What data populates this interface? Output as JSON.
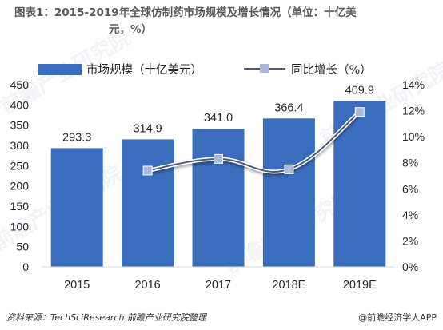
{
  "title": {
    "line1": "图表1：2015-2019年全球仿制药市场规模及增长情况（单位：十亿美",
    "line2": "元，%）"
  },
  "watermark": "前瞻产业研究院",
  "footer": {
    "source": "资料来源：TechSciResearch 前瞻产业研究院整理",
    "brand": "@前瞻经济学人APP"
  },
  "colors": {
    "bar": "#3A6DBE",
    "line": "#4A5A78",
    "marker": "#A9B9DE",
    "axis_text": "#262626"
  },
  "chart_data": {
    "type": "bar",
    "categories": [
      "2015",
      "2016",
      "2017",
      "2018E",
      "2019E"
    ],
    "series": [
      {
        "name": "市场规模（十亿美元）",
        "type": "bar",
        "axis": "left",
        "values": [
          293.3,
          314.9,
          341.0,
          366.4,
          409.9
        ],
        "labels": [
          "293.3",
          "314.9",
          "341.0",
          "366.4",
          "409.9"
        ]
      },
      {
        "name": "同比增长（%）",
        "type": "line",
        "axis": "right",
        "values": [
          null,
          7.4,
          8.3,
          7.5,
          11.9
        ]
      }
    ],
    "ylim_left": [
      0,
      450
    ],
    "yticks_left": [
      "0",
      "50",
      "100",
      "150",
      "200",
      "250",
      "300",
      "350",
      "400",
      "450"
    ],
    "ylim_right": [
      0,
      14
    ],
    "yticks_right": [
      "0%",
      "2%",
      "4%",
      "6%",
      "8%",
      "10%",
      "12%",
      "14%"
    ],
    "legend": "top",
    "grid": false
  }
}
